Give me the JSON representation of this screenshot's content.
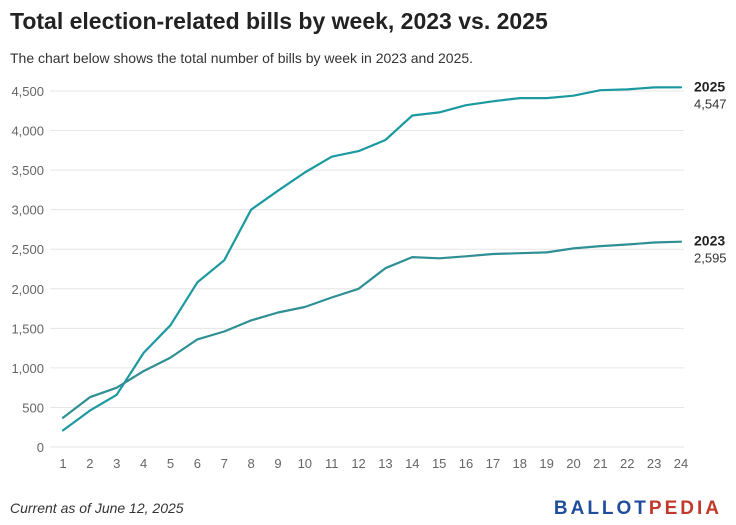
{
  "title": "Total election-related bills by week, 2023 vs. 2025",
  "subtitle": "The chart below shows the total number of bills by week in 2023 and 2025.",
  "footer_note": "Current as of June 12, 2025",
  "logo": {
    "part1": "BALLOT",
    "part2": "PEDIA"
  },
  "colors": {
    "series_2025": "#1a9aa0",
    "series_2023": "#2e8f94",
    "grid": "#e6e6e6",
    "axis_text": "#666666"
  },
  "chart_data": {
    "type": "line",
    "x": [
      1,
      2,
      3,
      4,
      5,
      6,
      7,
      8,
      9,
      10,
      11,
      12,
      13,
      14,
      15,
      16,
      17,
      18,
      19,
      20,
      21,
      22,
      23,
      24
    ],
    "ylim": [
      0,
      4500
    ],
    "yticks": [
      0,
      500,
      1000,
      1500,
      2000,
      2500,
      3000,
      3500,
      4000,
      4500
    ],
    "ytick_labels": [
      "0",
      "500",
      "1,000",
      "1,500",
      "2,000",
      "2,500",
      "3,000",
      "3,500",
      "4,000",
      "4,500"
    ],
    "grid": true,
    "series": [
      {
        "name": "2025",
        "end_label": "4,547",
        "values": [
          210,
          460,
          660,
          1190,
          1540,
          2080,
          2360,
          3000,
          3240,
          3470,
          3670,
          3740,
          3880,
          4190,
          4230,
          4320,
          4370,
          4410,
          4410,
          4440,
          4510,
          4520,
          4545,
          4547
        ]
      },
      {
        "name": "2023",
        "end_label": "2,595",
        "values": [
          370,
          630,
          750,
          960,
          1130,
          1360,
          1460,
          1600,
          1700,
          1770,
          1890,
          2000,
          2260,
          2400,
          2385,
          2410,
          2440,
          2450,
          2460,
          2510,
          2540,
          2560,
          2585,
          2595
        ]
      }
    ]
  }
}
